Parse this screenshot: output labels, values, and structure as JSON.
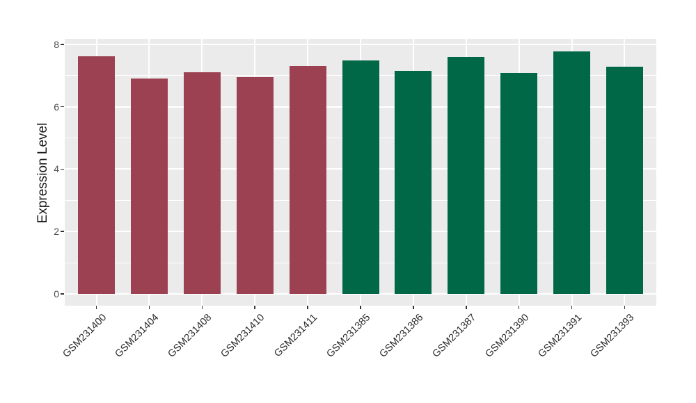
{
  "figure": {
    "background_color": "#FFFFFF",
    "panel_background_color": "#EBEBEB",
    "gridline_color": "#FFFFFF",
    "tick_mark_color": "#333333",
    "y_axis_text_color": "#4D4D4D",
    "x_axis_text_color": "#2B2B2B",
    "axis_title_color": "#1A1A1A"
  },
  "chart_data": {
    "type": "bar",
    "title": "",
    "xlabel": "",
    "ylabel": "Expression Level",
    "categories": [
      "GSM231400",
      "GSM231404",
      "GSM231408",
      "GSM231410",
      "GSM231411",
      "GSM231385",
      "GSM231386",
      "GSM231387",
      "GSM231390",
      "GSM231391",
      "GSM231393"
    ],
    "values": [
      7.61,
      6.9,
      7.11,
      6.94,
      7.3,
      7.49,
      7.15,
      7.59,
      7.08,
      7.77,
      7.29
    ],
    "bar_colors": [
      "#9C4151",
      "#9C4151",
      "#9C4151",
      "#9C4151",
      "#9C4151",
      "#016847",
      "#016847",
      "#016847",
      "#016847",
      "#016847",
      "#016847"
    ],
    "group_colors": {
      "maroon": "#9C4151",
      "green": "#016847"
    },
    "ylim": [
      0,
      8
    ],
    "yticks_major": [
      0,
      2,
      4,
      6,
      8
    ],
    "yticks_minor": [
      1,
      3,
      5,
      7
    ],
    "grid": "on",
    "legend": "none",
    "x_tick_rotation_deg": 45
  }
}
